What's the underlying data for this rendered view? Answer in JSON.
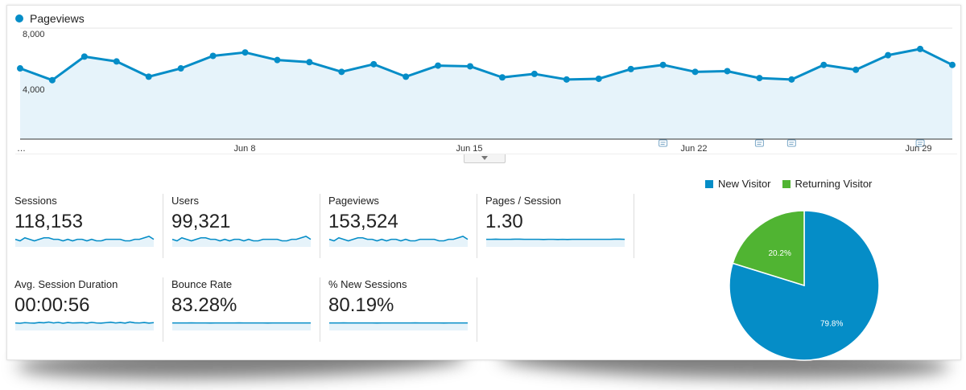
{
  "chart_data": [
    {
      "type": "line",
      "series": [
        {
          "name": "Pageviews",
          "values": [
            5100,
            4250,
            5950,
            5600,
            4500,
            5100,
            6000,
            6250,
            5700,
            5550,
            4850,
            5400,
            4500,
            5300,
            5250,
            4450,
            4700,
            4300,
            4350,
            5050,
            5350,
            4850,
            4900,
            4400,
            4300,
            5350,
            5000,
            6050,
            6500,
            5350
          ]
        }
      ],
      "ylim": [
        0,
        8000
      ],
      "yticks": [
        "8,000",
        "4,000"
      ],
      "xticks": [
        "…",
        "Jun 8",
        "Jun 15",
        "Jun 22",
        "Jun 29"
      ],
      "annotation_markers_at_index": [
        20,
        23,
        24,
        28
      ],
      "color": "#058dc7",
      "fill": "#e6f3fa"
    },
    {
      "type": "pie",
      "slices": [
        {
          "name": "New Visitor",
          "value": 79.8,
          "label": "79.8%",
          "color": "#058dc7"
        },
        {
          "name": "Returning Visitor",
          "value": 20.2,
          "label": "20.2%",
          "color": "#50b432"
        }
      ],
      "legend": "top"
    }
  ],
  "metrics": [
    {
      "label": "Sessions",
      "value": "118,153",
      "spark": [
        5,
        4,
        6,
        5,
        4,
        5,
        6,
        6,
        5,
        5,
        4,
        5,
        4,
        5,
        5,
        4,
        5,
        4,
        4,
        5,
        5,
        5,
        5,
        4,
        4,
        5,
        5,
        6,
        7,
        5
      ]
    },
    {
      "label": "Users",
      "value": "99,321",
      "spark": [
        5,
        4,
        6,
        5,
        4,
        5,
        6,
        6,
        5,
        5,
        4,
        5,
        4,
        5,
        5,
        4,
        5,
        4,
        4,
        5,
        5,
        5,
        5,
        4,
        4,
        5,
        5,
        6,
        7,
        5
      ]
    },
    {
      "label": "Pageviews",
      "value": "153,524",
      "spark": [
        5,
        4,
        6,
        5,
        4,
        5,
        6,
        6,
        5,
        5,
        4,
        5,
        4,
        5,
        5,
        4,
        5,
        4,
        4,
        5,
        5,
        5,
        5,
        4,
        4,
        5,
        5,
        6,
        7,
        5
      ]
    },
    {
      "label": "Pages / Session",
      "value": "1.30",
      "spark": [
        5,
        5,
        5.1,
        5,
        5,
        5,
        5.1,
        5.1,
        5,
        5,
        5,
        5,
        4.9,
        5,
        5,
        4.9,
        5,
        4.9,
        5,
        5,
        5,
        5,
        5,
        5,
        5,
        5,
        5,
        5.1,
        5.1,
        5
      ]
    },
    {
      "label": "Avg. Session Duration",
      "value": "00:00:56",
      "spark": [
        5,
        4.8,
        5.2,
        5,
        4.9,
        5.3,
        5.1,
        5.6,
        5,
        5.4,
        4.8,
        5.3,
        5,
        5.1,
        5.2,
        4.9,
        5.4,
        5,
        4.9,
        5.2,
        5.5,
        5,
        5.3,
        4.9,
        5.6,
        5.1,
        5,
        5.3,
        4.9,
        5.2
      ]
    },
    {
      "label": "Bounce Rate",
      "value": "83.28%",
      "spark": [
        5,
        5,
        5,
        5,
        5.05,
        5,
        5,
        5,
        4.95,
        5,
        5,
        5,
        5,
        5,
        5.05,
        5,
        5,
        5,
        5,
        5,
        4.95,
        5,
        5,
        5,
        5,
        5,
        5,
        5,
        5,
        5
      ]
    },
    {
      "label": "% New Sessions",
      "value": "80.19%",
      "spark": [
        5,
        5,
        5,
        5.05,
        5,
        5,
        5,
        5,
        5,
        5,
        4.95,
        5,
        5,
        5,
        5,
        5,
        5,
        5,
        5.05,
        5,
        5,
        5,
        5,
        5,
        4.95,
        5,
        5,
        5,
        5,
        5
      ]
    }
  ]
}
